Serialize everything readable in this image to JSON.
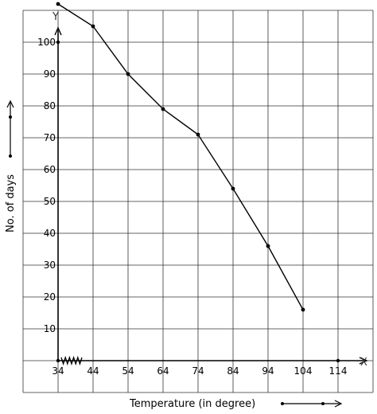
{
  "chart_data": {
    "type": "line",
    "x": [
      34,
      44,
      54,
      64,
      74,
      84,
      94,
      104
    ],
    "series": [
      {
        "values": [
          112,
          105,
          90,
          79,
          71,
          54,
          36,
          16
        ]
      }
    ],
    "x_ticks": [
      "34",
      "44",
      "54",
      "64",
      "74",
      "84",
      "94",
      "104",
      "114"
    ],
    "y_ticks": [
      "10",
      "20",
      "30",
      "40",
      "50",
      "60",
      "70",
      "80",
      "90",
      "100"
    ],
    "xlabel": "Temperature (in degree)",
    "ylabel": "No. of days",
    "x_axis_letter": "X",
    "y_axis_letter": "Y",
    "xlim": [
      24,
      124
    ],
    "ylim": [
      -10,
      110
    ],
    "grid": true,
    "axis_break_x": true,
    "line_color": "#000000",
    "grid_color": "#333333"
  }
}
